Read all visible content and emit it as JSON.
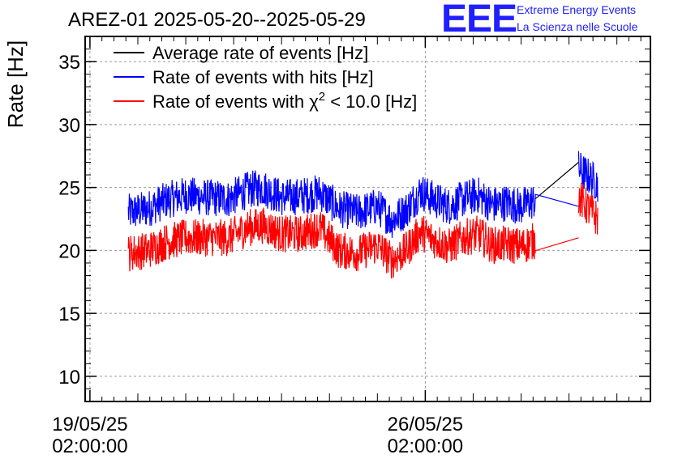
{
  "header": {
    "title": "AREZ-01 2025-05-20--2025-05-29",
    "logo": "EEE",
    "org_line1": "Extreme Energy Events",
    "org_line2": "La Scienza nelle Scuole"
  },
  "chart_data": {
    "type": "line",
    "title": "AREZ-01 2025-05-20--2025-05-29",
    "ylabel": "Rate [Hz]",
    "xlabel": "",
    "ylim": [
      8,
      37
    ],
    "y_ticks": [
      10,
      15,
      20,
      25,
      30,
      35
    ],
    "x_ticks": [
      {
        "day": 0,
        "line1": "19/05/25",
        "line2": "02:00:00"
      },
      {
        "day": 7,
        "line1": "26/05/25",
        "line2": "02:00:00"
      }
    ],
    "xlim_days": [
      -0.1,
      11.7
    ],
    "grid": true,
    "legend_position": "top-left",
    "series": [
      {
        "name": "Average rate of events [Hz]",
        "color": "#000000",
        "points": [
          [
            9.3,
            24.1
          ],
          [
            10.2,
            27.0
          ]
        ]
      },
      {
        "name": "Rate of events with hits [Hz]",
        "color": "#0000ff",
        "points": [
          [
            0.8,
            23.0
          ],
          [
            1.2,
            23.3
          ],
          [
            1.6,
            24.0
          ],
          [
            2.0,
            24.4
          ],
          [
            2.4,
            24.2
          ],
          [
            2.9,
            24.1
          ],
          [
            3.3,
            24.8
          ],
          [
            3.6,
            25.0
          ],
          [
            4.0,
            24.2
          ],
          [
            4.4,
            24.3
          ],
          [
            4.8,
            24.6
          ],
          [
            5.2,
            23.3
          ],
          [
            5.6,
            23.0
          ],
          [
            6.0,
            23.5
          ],
          [
            6.3,
            22.4
          ],
          [
            6.6,
            23.2
          ],
          [
            6.9,
            24.7
          ],
          [
            7.2,
            24.0
          ],
          [
            7.5,
            23.5
          ],
          [
            7.8,
            24.1
          ],
          [
            8.1,
            24.4
          ],
          [
            8.4,
            23.6
          ],
          [
            8.7,
            23.8
          ],
          [
            9.0,
            23.5
          ],
          [
            9.3,
            24.0
          ],
          [
            10.2,
            23.5
          ],
          [
            10.2,
            26.5
          ],
          [
            10.6,
            25.3
          ]
        ],
        "noise_amplitude": 1.5
      },
      {
        "name": "Rate of events with χ² < 10.0 [Hz]",
        "color": "#ff0000",
        "points": [
          [
            0.8,
            19.8
          ],
          [
            1.2,
            20.0
          ],
          [
            1.6,
            20.7
          ],
          [
            2.0,
            21.0
          ],
          [
            2.4,
            21.0
          ],
          [
            2.9,
            21.0
          ],
          [
            3.3,
            21.8
          ],
          [
            3.6,
            22.0
          ],
          [
            4.0,
            21.3
          ],
          [
            4.4,
            21.3
          ],
          [
            4.8,
            21.8
          ],
          [
            5.2,
            20.0
          ],
          [
            5.6,
            19.8
          ],
          [
            6.0,
            20.4
          ],
          [
            6.3,
            19.2
          ],
          [
            6.6,
            20.0
          ],
          [
            6.9,
            21.5
          ],
          [
            7.2,
            20.8
          ],
          [
            7.5,
            20.3
          ],
          [
            7.8,
            21.0
          ],
          [
            8.1,
            21.3
          ],
          [
            8.4,
            20.4
          ],
          [
            8.7,
            20.5
          ],
          [
            9.0,
            20.3
          ],
          [
            9.3,
            20.8
          ],
          [
            10.2,
            21.0
          ],
          [
            10.2,
            24.2
          ],
          [
            10.6,
            22.5
          ]
        ],
        "noise_amplitude": 1.5
      }
    ]
  }
}
